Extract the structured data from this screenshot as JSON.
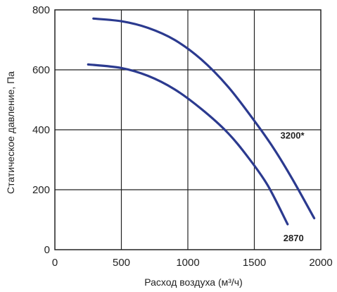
{
  "chart_data": {
    "type": "line",
    "title": "",
    "xlabel": "Расход воздуха (м³/ч)",
    "ylabel": "Статическое давление, Па",
    "xlim": [
      0,
      2000
    ],
    "ylim": [
      0,
      800
    ],
    "x_ticks": [
      0,
      500,
      1000,
      1500,
      2000
    ],
    "y_ticks": [
      0,
      200,
      400,
      600,
      800
    ],
    "grid": true,
    "series": [
      {
        "name": "3200*",
        "color": "#2b3a8f",
        "x": [
          290,
          500,
          700,
          900,
          1100,
          1300,
          1500,
          1650,
          1800,
          1950
        ],
        "y": [
          771,
          762,
          740,
          700,
          635,
          545,
          430,
          335,
          225,
          105
        ]
      },
      {
        "name": "2870",
        "color": "#2b3a8f",
        "x": [
          250,
          500,
          700,
          900,
          1100,
          1300,
          1450,
          1600,
          1750
        ],
        "y": [
          618,
          606,
          580,
          535,
          470,
          390,
          310,
          215,
          85
        ]
      }
    ]
  }
}
